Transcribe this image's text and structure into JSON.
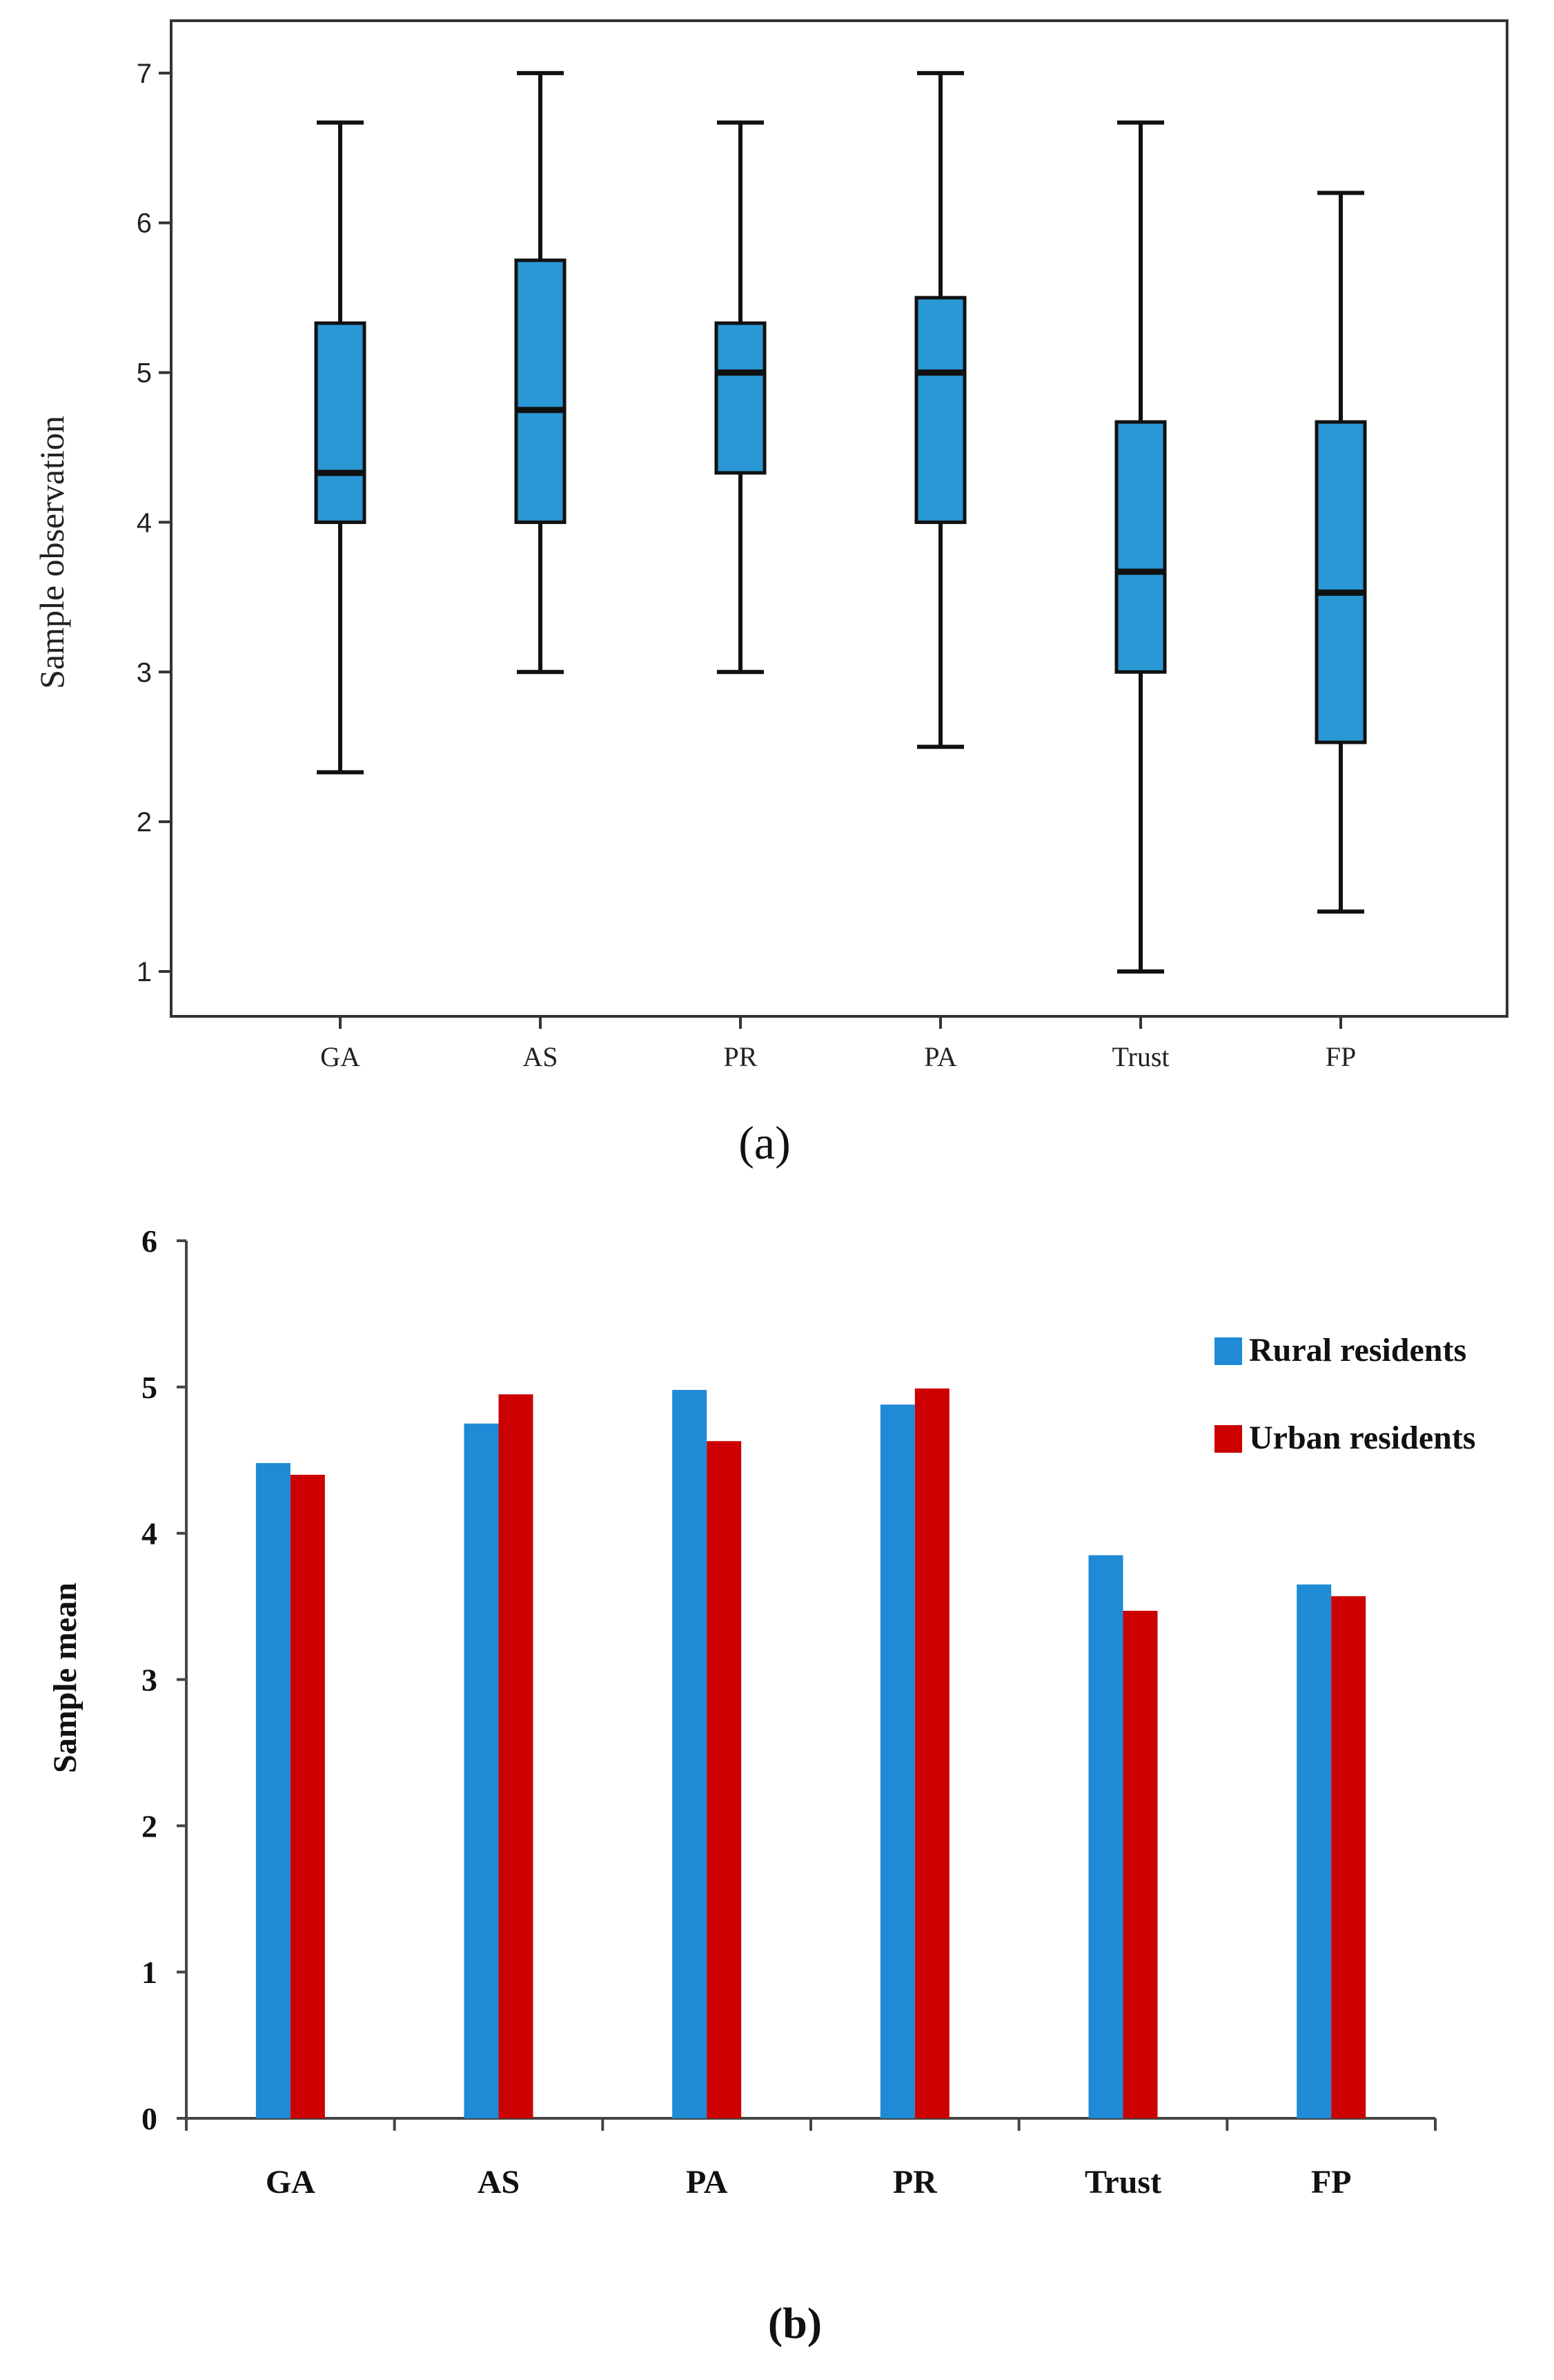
{
  "chart_data": [
    {
      "type": "boxplot",
      "panel_label": "(a)",
      "ylabel": "Sample observation",
      "xlabel": "",
      "ylim": [
        0.7,
        7.35
      ],
      "yticks": [
        1,
        2,
        3,
        4,
        5,
        6,
        7
      ],
      "categories": [
        "GA",
        "AS",
        "PR",
        "PA",
        "Trust",
        "FP"
      ],
      "box_color": "#2a98d4",
      "boxes": [
        {
          "label": "GA",
          "min": 2.33,
          "q1": 4.0,
          "median": 4.33,
          "q3": 5.33,
          "max": 6.67
        },
        {
          "label": "AS",
          "min": 3.0,
          "q1": 4.0,
          "median": 4.75,
          "q3": 5.75,
          "max": 7.0
        },
        {
          "label": "PR",
          "min": 3.0,
          "q1": 4.33,
          "median": 5.0,
          "q3": 5.33,
          "max": 6.67
        },
        {
          "label": "PA",
          "min": 2.5,
          "q1": 4.0,
          "median": 5.0,
          "q3": 5.5,
          "max": 7.0
        },
        {
          "label": "Trust",
          "min": 1.0,
          "q1": 3.0,
          "median": 3.67,
          "q3": 4.67,
          "max": 6.67
        },
        {
          "label": "FP",
          "min": 1.4,
          "q1": 2.53,
          "median": 3.53,
          "q3": 4.67,
          "max": 6.2
        }
      ]
    },
    {
      "type": "bar",
      "panel_label": "(b)",
      "ylabel": "Sample mean",
      "xlabel": "",
      "ylim": [
        0,
        6
      ],
      "yticks": [
        0,
        1,
        2,
        3,
        4,
        5,
        6
      ],
      "categories": [
        "GA",
        "AS",
        "PA",
        "PR",
        "Trust",
        "FP"
      ],
      "legend_position": "top-right",
      "series": [
        {
          "name": "Rural residents",
          "color": "#1f8ad6",
          "values": [
            4.48,
            4.75,
            4.98,
            4.88,
            3.85,
            3.65
          ]
        },
        {
          "name": "Urban residents",
          "color": "#cc0000",
          "values": [
            4.4,
            4.95,
            4.63,
            4.99,
            3.47,
            3.57
          ]
        }
      ]
    }
  ]
}
